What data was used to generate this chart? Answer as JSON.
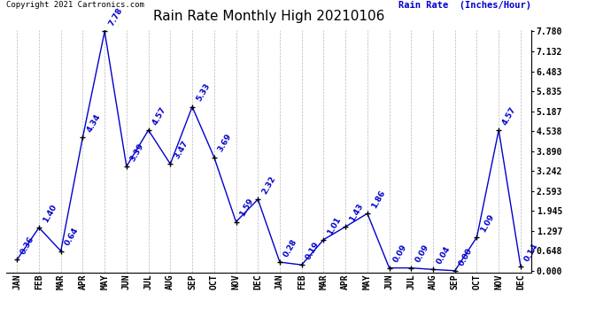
{
  "title": "Rain Rate Monthly High 20210106",
  "ylabel": "Rain Rate  (Inches/Hour)",
  "copyright": "Copyright 2021 Cartronics.com",
  "months": [
    "JAN",
    "FEB",
    "MAR",
    "APR",
    "MAY",
    "JUN",
    "JUL",
    "AUG",
    "SEP",
    "OCT",
    "NOV",
    "DEC",
    "JAN",
    "FEB",
    "MAR",
    "APR",
    "MAY",
    "JUN",
    "JUL",
    "AUG",
    "SEP",
    "OCT",
    "NOV",
    "DEC"
  ],
  "values": [
    0.36,
    1.4,
    0.64,
    4.34,
    7.78,
    3.39,
    4.57,
    3.47,
    5.33,
    3.69,
    1.59,
    2.32,
    0.28,
    0.19,
    1.01,
    1.43,
    1.86,
    0.09,
    0.09,
    0.04,
    0.0,
    1.09,
    4.57,
    0.14
  ],
  "yticks": [
    0.0,
    0.648,
    1.297,
    1.945,
    2.593,
    3.242,
    3.89,
    4.538,
    5.187,
    5.835,
    6.483,
    7.132,
    7.78
  ],
  "line_color": "#0000cc",
  "bg_color": "#ffffff",
  "grid_color": "#b0b0b0",
  "title_fontsize": 11,
  "tick_fontsize": 7,
  "annot_fontsize": 6.5,
  "copyright_fontsize": 6.5,
  "ylabel_fontsize": 7.5,
  "ylim_min": -0.05,
  "ylim_max": 7.78
}
